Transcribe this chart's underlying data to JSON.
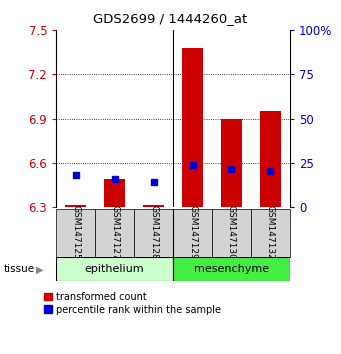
{
  "title": "GDS2699 / 1444260_at",
  "samples": [
    "GSM147125",
    "GSM147127",
    "GSM147128",
    "GSM147129",
    "GSM147130",
    "GSM147132"
  ],
  "red_values": [
    6.315,
    6.49,
    6.315,
    7.38,
    6.9,
    6.95
  ],
  "blue_values_axis": [
    6.52,
    6.49,
    6.47,
    6.585,
    6.555,
    6.545
  ],
  "red_base": 6.3,
  "ylim": [
    6.3,
    7.5
  ],
  "y_left_ticks": [
    6.3,
    6.6,
    6.9,
    7.2,
    7.5
  ],
  "y_right_ticks": [
    0,
    25,
    50,
    75,
    100
  ],
  "red_color": "#cc0000",
  "blue_color": "#0000cc",
  "bar_width": 0.55,
  "epithelium_color": "#ccffcc",
  "mesenchyme_color": "#44ee44",
  "gray_color": "#d3d3d3",
  "tissue_label": "tissue",
  "legend_labels": [
    "transformed count",
    "percentile rank within the sample"
  ]
}
